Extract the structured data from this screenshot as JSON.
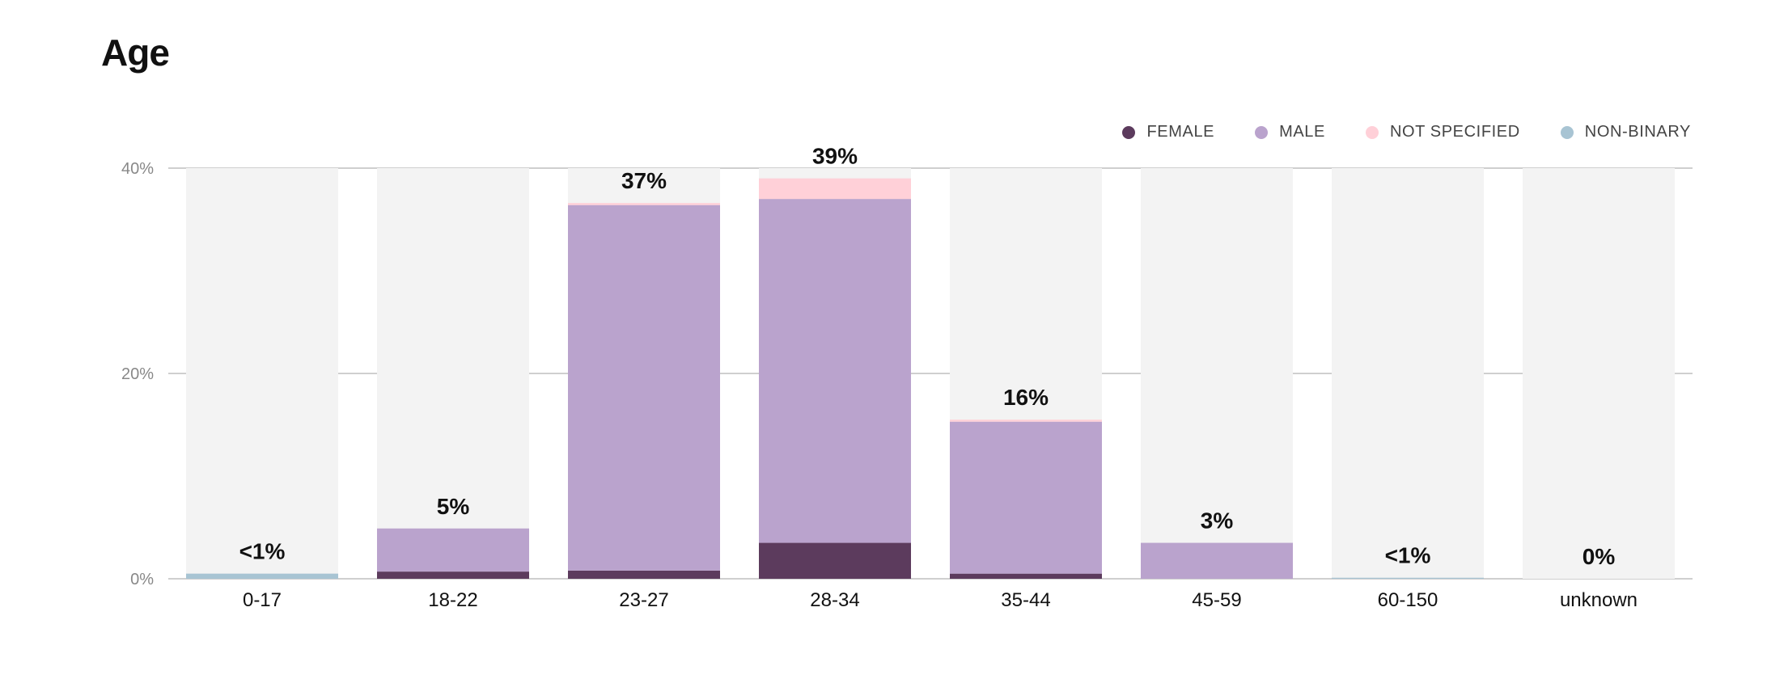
{
  "title": "Age",
  "colors": {
    "female": "#5c3b5d",
    "male": "#baa3cd",
    "not_specified": "#ffd0d8",
    "non_binary": "#a8c4d3",
    "track": "#f3f3f3",
    "grid": "#cfcfcf"
  },
  "legend": [
    {
      "label": "FEMALE",
      "color": "#5c3b5d"
    },
    {
      "label": "MALE",
      "color": "#baa3cd"
    },
    {
      "label": "NOT SPECIFIED",
      "color": "#ffd0d8"
    },
    {
      "label": "NON-BINARY",
      "color": "#a8c4d3"
    }
  ],
  "chart_data": {
    "type": "bar",
    "stacked": true,
    "title": "Age",
    "categories": [
      "0-17",
      "18-22",
      "23-27",
      "28-34",
      "35-44",
      "45-59",
      "60-150",
      "unknown"
    ],
    "series": [
      {
        "name": "FEMALE",
        "values": [
          0,
          0.7,
          0.8,
          3.5,
          0.5,
          0,
          0,
          0
        ]
      },
      {
        "name": "MALE",
        "values": [
          0,
          4.2,
          35.6,
          33.5,
          14.8,
          3.5,
          0,
          0
        ]
      },
      {
        "name": "NOT SPECIFIED",
        "values": [
          0,
          0,
          0.2,
          2.0,
          0.2,
          0,
          0,
          0
        ]
      },
      {
        "name": "NON-BINARY",
        "values": [
          0.5,
          0,
          0,
          0,
          0,
          0,
          0.1,
          0
        ]
      }
    ],
    "data_labels": [
      "<1%",
      "5%",
      "37%",
      "39%",
      "16%",
      "3%",
      "<1%",
      "0%"
    ],
    "yticks": [
      "0%",
      "20%",
      "40%"
    ],
    "ylim": [
      0,
      40
    ],
    "grid": true,
    "legend_position": "top-right"
  }
}
